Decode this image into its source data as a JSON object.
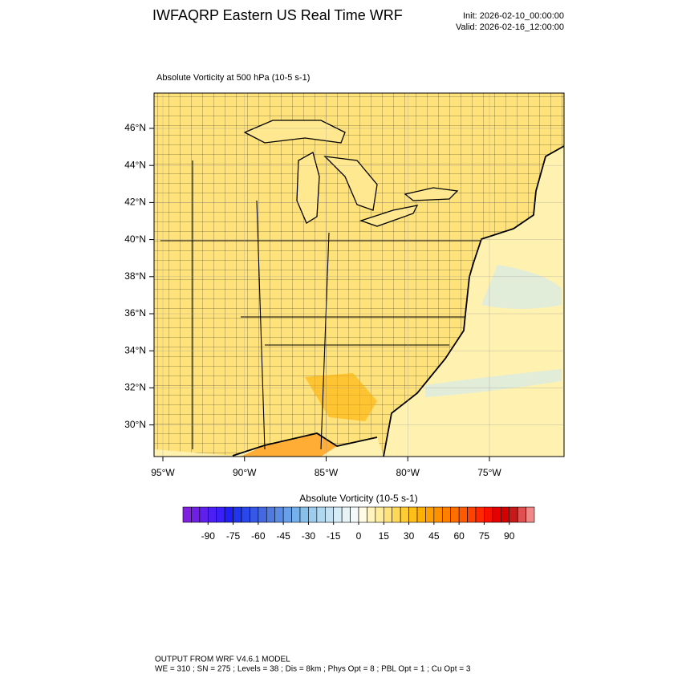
{
  "header": {
    "title": "IWFAQRP Eastern US Real Time WRF",
    "init": "Init: 2026-02-10_00:00:00",
    "valid": "Valid: 2026-02-16_12:00:00"
  },
  "map": {
    "subtitle": "Absolute Vorticity at 500 hPa   (10-5 s-1)",
    "lat_ticks": [
      {
        "value": 46,
        "label": "46°N"
      },
      {
        "value": 44,
        "label": "44°N"
      },
      {
        "value": 42,
        "label": "42°N"
      },
      {
        "value": 40,
        "label": "40°N"
      },
      {
        "value": 38,
        "label": "38°N"
      },
      {
        "value": 36,
        "label": "36°N"
      },
      {
        "value": 34,
        "label": "34°N"
      },
      {
        "value": 32,
        "label": "32°N"
      },
      {
        "value": 30,
        "label": "30°N"
      }
    ],
    "lon_ticks": [
      {
        "value": -95,
        "label": "95°W"
      },
      {
        "value": -90,
        "label": "90°W"
      },
      {
        "value": -85,
        "label": "85°W"
      },
      {
        "value": -80,
        "label": "80°W"
      },
      {
        "value": -75,
        "label": "75°W"
      }
    ]
  },
  "colorbar": {
    "title": "Absolute Vorticity  (10-5 s-1)",
    "range": [
      -105,
      105
    ],
    "ticks": [
      -90,
      -75,
      -60,
      -45,
      -30,
      -15,
      0,
      15,
      30,
      45,
      60,
      75,
      90
    ],
    "colors": [
      "#8020e0",
      "#7020e6",
      "#5f20ec",
      "#4c20f2",
      "#3a20f6",
      "#2020f6",
      "#1f35f0",
      "#2a48ea",
      "#3758e4",
      "#4468e0",
      "#4f7ae0",
      "#5a8ce4",
      "#67a0e8",
      "#76b0ea",
      "#88c0ec",
      "#9ccdee",
      "#b0d8f0",
      "#c4e2f4",
      "#d6ecf6",
      "#e6f4f8",
      "#f4fafa",
      "#fffbe4",
      "#fff4c0",
      "#ffec9c",
      "#ffe27a",
      "#ffd858",
      "#ffcc38",
      "#ffbf1a",
      "#ffb000",
      "#ffa000",
      "#ff9000",
      "#ff8000",
      "#ff6e00",
      "#ff5a00",
      "#ff4200",
      "#ff2800",
      "#f81000",
      "#e80000",
      "#d40000",
      "#c81818",
      "#e05050",
      "#f08888"
    ]
  },
  "footer": {
    "line1": "OUTPUT FROM WRF V4.6.1 MODEL",
    "line2": "WE = 310 ; SN = 275 ; Levels = 38 ; Dis = 8km ; Phys Opt = 8 ; PBL Opt = 1 ; Cu Opt = 3"
  }
}
